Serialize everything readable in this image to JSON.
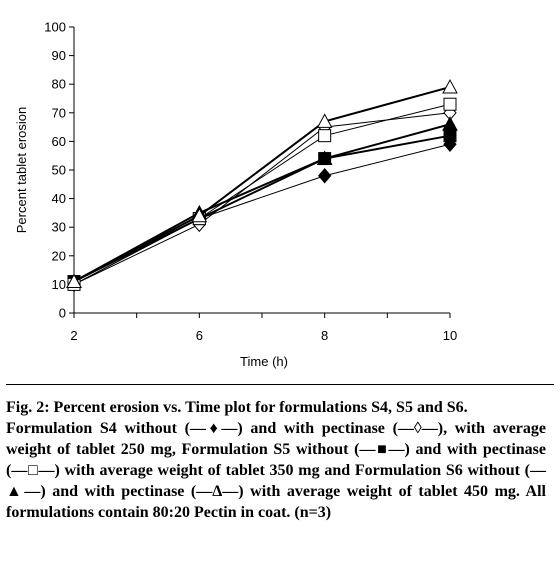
{
  "chart_data": {
    "type": "line",
    "title": "",
    "xlabel": "Time (h)",
    "ylabel": "Percent tablet erosion",
    "x": [
      2,
      6,
      8,
      10
    ],
    "xlim": [
      2,
      10
    ],
    "ylim": [
      0,
      100
    ],
    "yticks": [
      0,
      10,
      20,
      30,
      40,
      50,
      60,
      70,
      80,
      90,
      100
    ],
    "xticks": [
      2,
      6,
      8,
      10
    ],
    "grid": false,
    "legend": "none",
    "series": [
      {
        "marker": "diamond",
        "filled": true,
        "values": [
          10,
          33,
          48,
          59
        ]
      },
      {
        "marker": "diamond",
        "filled": false,
        "values": [
          10,
          31,
          65,
          70
        ]
      },
      {
        "marker": "square",
        "filled": true,
        "values": [
          11,
          33,
          54,
          62
        ]
      },
      {
        "marker": "square",
        "filled": false,
        "values": [
          10,
          33,
          62,
          73
        ]
      },
      {
        "marker": "triangle",
        "filled": true,
        "values": [
          11,
          35,
          54,
          66
        ]
      },
      {
        "marker": "triangle",
        "filled": false,
        "values": [
          11,
          34,
          67,
          79
        ]
      }
    ],
    "line_color": "#000000"
  },
  "caption": {
    "title": "Fig. 2: Percent erosion vs. Time plot for formulations S4, S5 and S6.",
    "body": "Formulation S4 without (—♦—) and with pectinase (—◊—), with average weight of tablet 250 mg, Formulation S5 without (—■—) and with pectinase (—□—) with average weight of tablet 350 mg and Formulation S6 without (—▲—) and with pectinase (—Δ—) with average weight of tablet 450 mg. All formulations contain 80:20 Pectin in coat. (n=3)"
  }
}
